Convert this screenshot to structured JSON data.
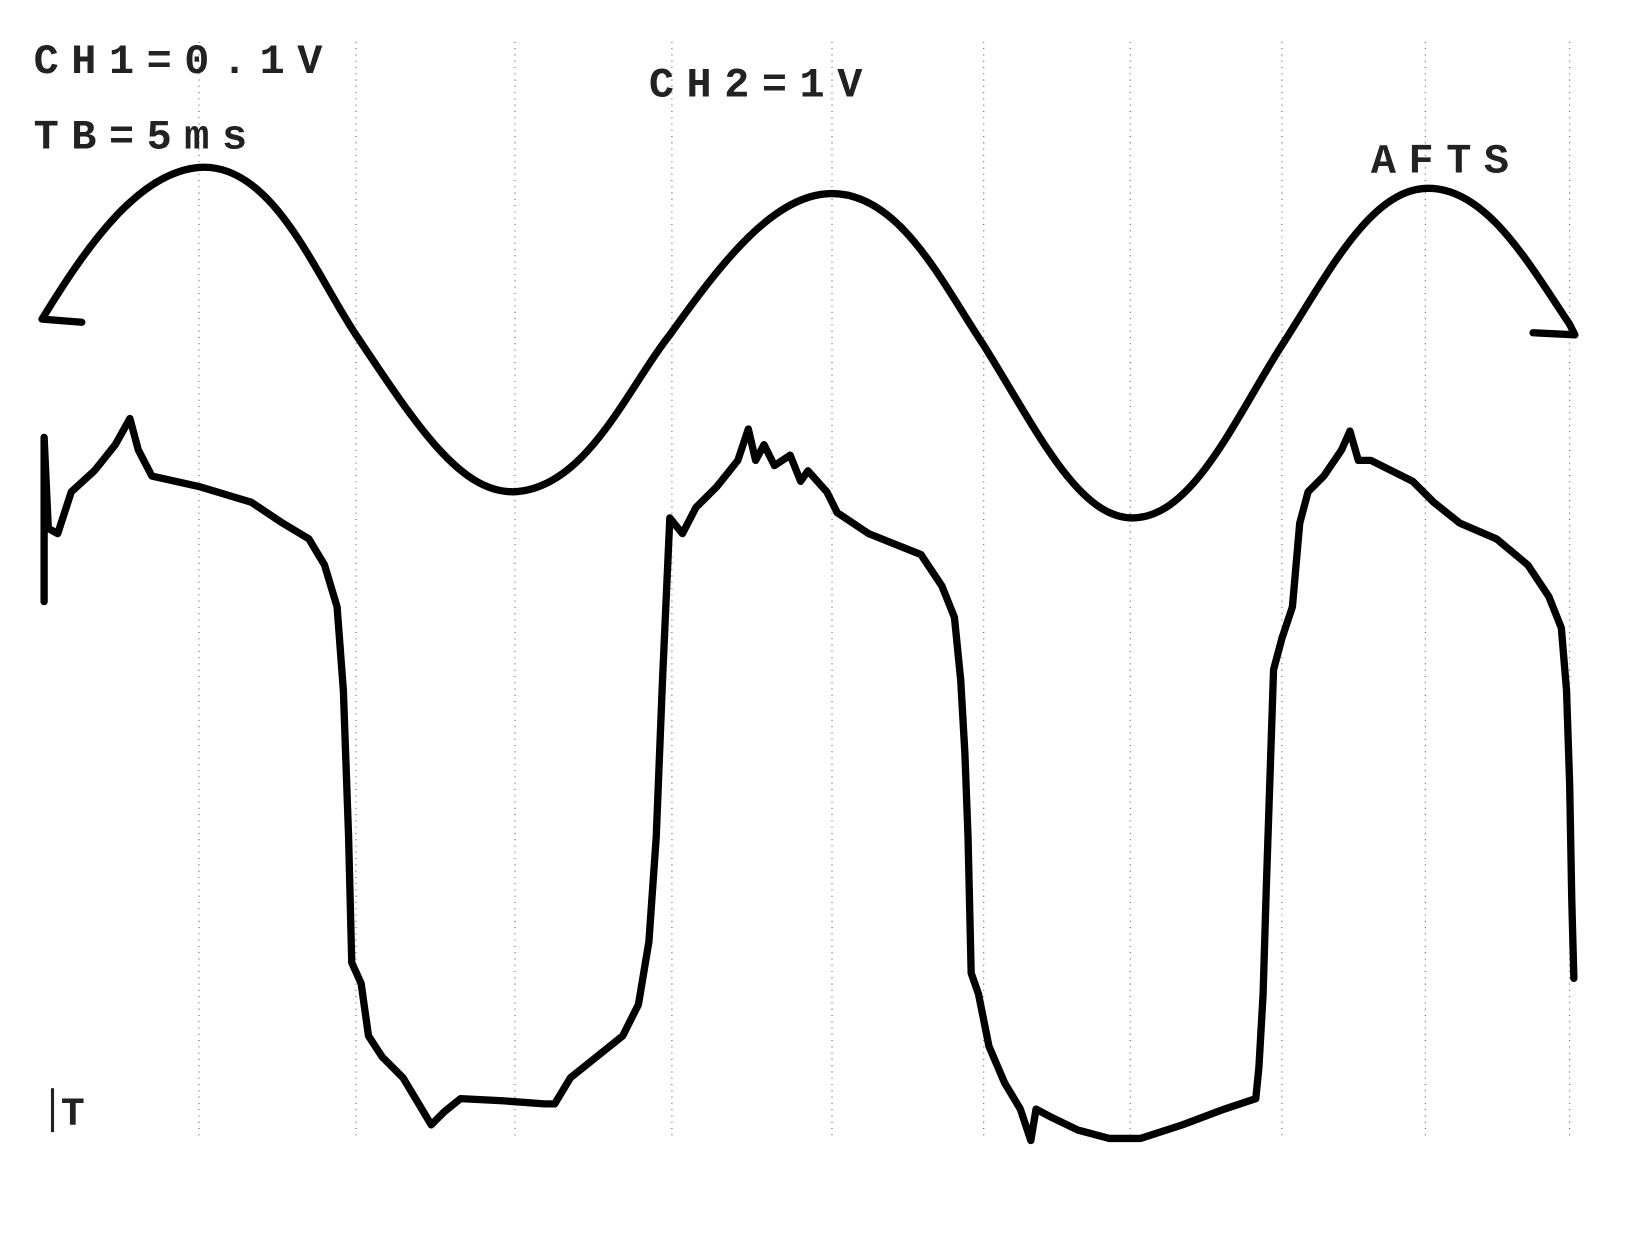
{
  "screen": {
    "ch1_label": "CH1=0.1V",
    "timebase_label": "TB=5ms",
    "ch2_label": "CH2=1V",
    "mode_label": "AFTS",
    "trigger_marker": "T"
  }
}
